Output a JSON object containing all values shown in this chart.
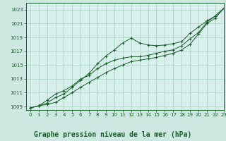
{
  "background_color": "#cce8e0",
  "plot_bg_color": "#d8f0ec",
  "grid_color": "#aacfc8",
  "line_color": "#1a5c2a",
  "marker_color": "#1a5c2a",
  "title": "Graphe pression niveau de la mer (hPa)",
  "title_fontsize": 7,
  "xlim": [
    -0.5,
    23
  ],
  "ylim": [
    1008.5,
    1024.0
  ],
  "yticks": [
    1009,
    1011,
    1013,
    1015,
    1017,
    1019,
    1021,
    1023
  ],
  "xticks": [
    0,
    1,
    2,
    3,
    4,
    5,
    6,
    7,
    8,
    9,
    10,
    11,
    12,
    13,
    14,
    15,
    16,
    17,
    18,
    19,
    20,
    21,
    22,
    23
  ],
  "series1": [
    1008.8,
    1009.1,
    1009.3,
    1009.6,
    1010.3,
    1011.0,
    1011.8,
    1012.5,
    1013.2,
    1013.9,
    1014.5,
    1015.0,
    1015.5,
    1015.7,
    1015.9,
    1016.1,
    1016.4,
    1016.7,
    1017.2,
    1018.0,
    1019.5,
    1021.0,
    1021.8,
    1023.2
  ],
  "series2": [
    1008.8,
    1009.1,
    1009.5,
    1010.3,
    1010.8,
    1011.8,
    1012.8,
    1013.8,
    1015.2,
    1016.3,
    1017.2,
    1018.2,
    1018.9,
    1018.2,
    1017.9,
    1017.8,
    1017.9,
    1018.1,
    1018.4,
    1019.6,
    1020.5,
    1021.4,
    1022.1,
    1023.2
  ],
  "series3": [
    1008.8,
    1009.1,
    1009.9,
    1010.8,
    1011.3,
    1012.0,
    1013.0,
    1013.5,
    1014.5,
    1015.2,
    1015.7,
    1016.0,
    1016.2,
    1016.2,
    1016.4,
    1016.7,
    1017.0,
    1017.2,
    1017.8,
    1018.8,
    1019.7,
    1021.2,
    1022.1,
    1023.2
  ]
}
